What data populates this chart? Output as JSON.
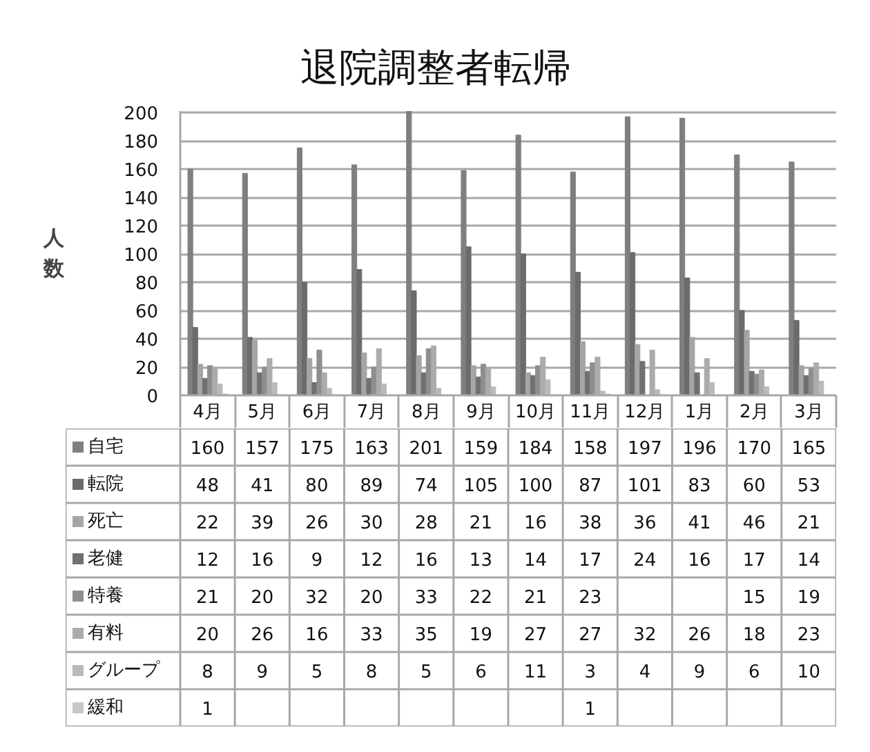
{
  "chart_data": {
    "type": "bar",
    "title": "退院調整者転帰",
    "ylabel": "人数",
    "categories": [
      "4月",
      "5月",
      "6月",
      "7月",
      "8月",
      "9月",
      "10月",
      "11月",
      "12月",
      "1月",
      "2月",
      "3月"
    ],
    "series": [
      {
        "name": "自宅",
        "color": "#7f7f7f",
        "values": [
          160,
          157,
          175,
          163,
          201,
          159,
          184,
          158,
          197,
          196,
          170,
          165
        ]
      },
      {
        "name": "転院",
        "color": "#6b6b6b",
        "values": [
          48,
          41,
          80,
          89,
          74,
          105,
          100,
          87,
          101,
          83,
          60,
          53
        ]
      },
      {
        "name": "死亡",
        "color": "#a5a5a5",
        "values": [
          22,
          39,
          26,
          30,
          28,
          21,
          16,
          38,
          36,
          41,
          46,
          21
        ]
      },
      {
        "name": "老健",
        "color": "#707070",
        "values": [
          12,
          16,
          9,
          12,
          16,
          13,
          14,
          17,
          24,
          16,
          17,
          14
        ]
      },
      {
        "name": "特養",
        "color": "#8e8e8e",
        "values": [
          21,
          20,
          32,
          20,
          33,
          22,
          21,
          23,
          null,
          null,
          15,
          19
        ]
      },
      {
        "name": "有料",
        "color": "#ababab",
        "values": [
          20,
          26,
          16,
          33,
          35,
          19,
          27,
          27,
          32,
          26,
          18,
          23
        ]
      },
      {
        "name": "グループ",
        "color": "#bababa",
        "values": [
          8,
          9,
          5,
          8,
          5,
          6,
          11,
          3,
          4,
          9,
          6,
          10
        ]
      },
      {
        "name": "緩和",
        "color": "#c8c8c8",
        "values": [
          1,
          null,
          null,
          null,
          null,
          null,
          null,
          1,
          null,
          null,
          null,
          null
        ]
      }
    ],
    "ylim": [
      0,
      201
    ],
    "yticks": [
      0,
      20,
      40,
      60,
      80,
      100,
      120,
      140,
      160,
      180,
      200
    ],
    "grid": "y",
    "legend": "bottom left",
    "data_labels": true
  }
}
